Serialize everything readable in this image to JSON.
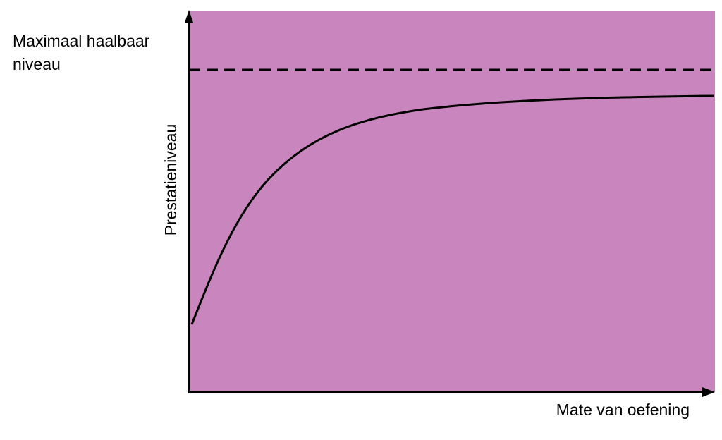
{
  "diagram": {
    "max_label_line1": "Maximaal haalbaar",
    "max_label_line2": "niveau",
    "x_axis_label": "Mate van oefening",
    "y_axis_label": "Prestatieniveau",
    "background_color": "#C985BD",
    "line_color": "#000000",
    "max_line_style": "dashed",
    "curve_shape": "rising-saturating"
  }
}
